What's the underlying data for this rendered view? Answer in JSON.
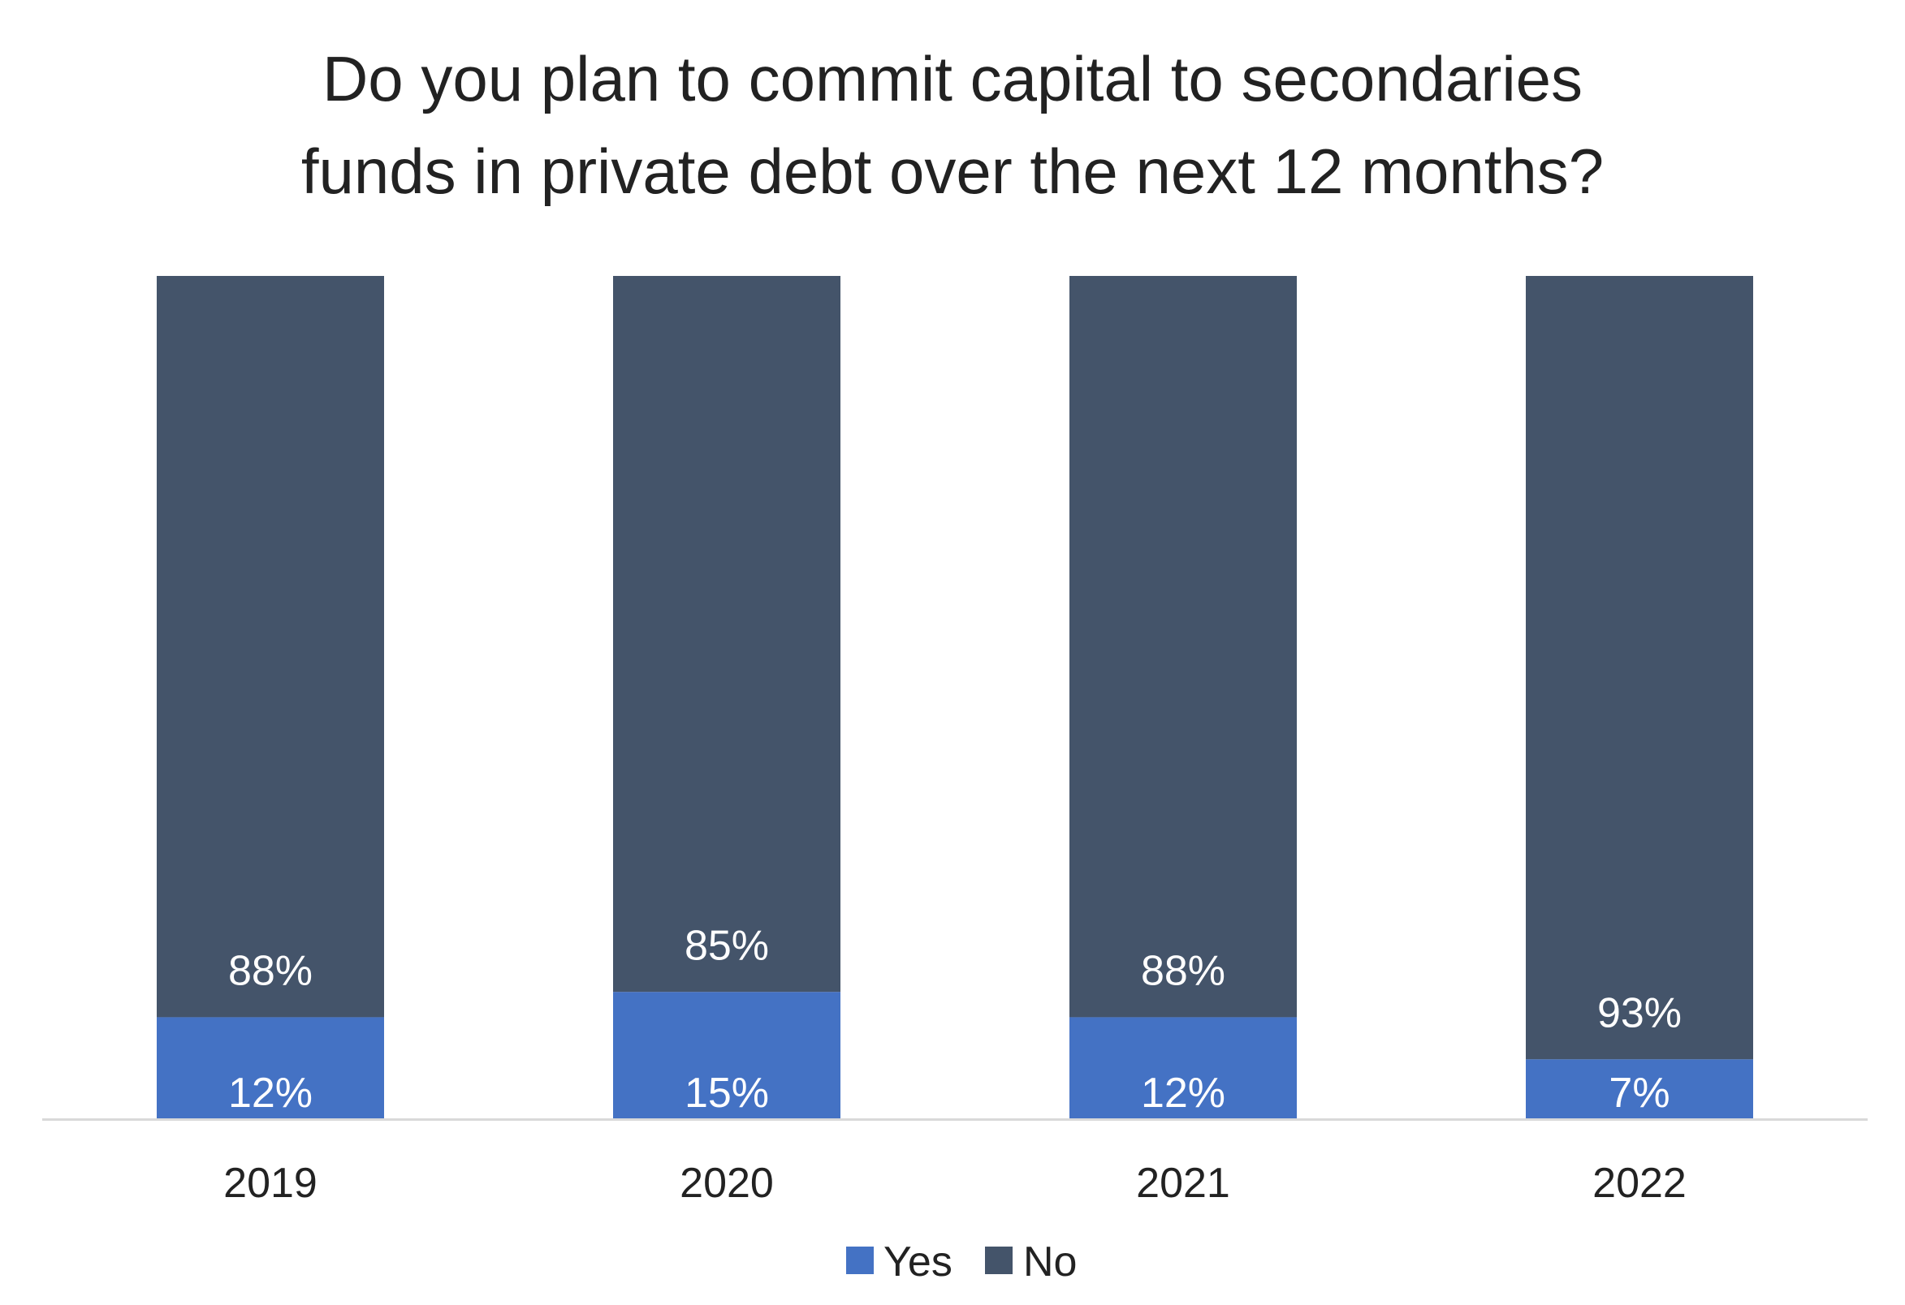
{
  "chart_data": {
    "type": "bar",
    "stacked": true,
    "title": "Do you plan to commit capital to secondaries funds in private debt over the next 12 months?",
    "title_lines": [
      "Do you plan to commit capital to secondaries",
      "funds in private debt over the next 12 months?"
    ],
    "categories": [
      "2019",
      "2020",
      "2021",
      "2022"
    ],
    "series": [
      {
        "name": "Yes",
        "color": "#4472C4",
        "values": [
          12,
          15,
          12,
          7
        ],
        "labels": [
          "12%",
          "15%",
          "12%",
          "7%"
        ]
      },
      {
        "name": "No",
        "color": "#44546A",
        "values": [
          88,
          85,
          88,
          93
        ],
        "labels": [
          "88%",
          "85%",
          "88%",
          "93%"
        ]
      }
    ],
    "ylim": [
      0,
      100
    ],
    "xlabel": "",
    "ylabel": "",
    "grid": false,
    "legend": "bottom"
  }
}
